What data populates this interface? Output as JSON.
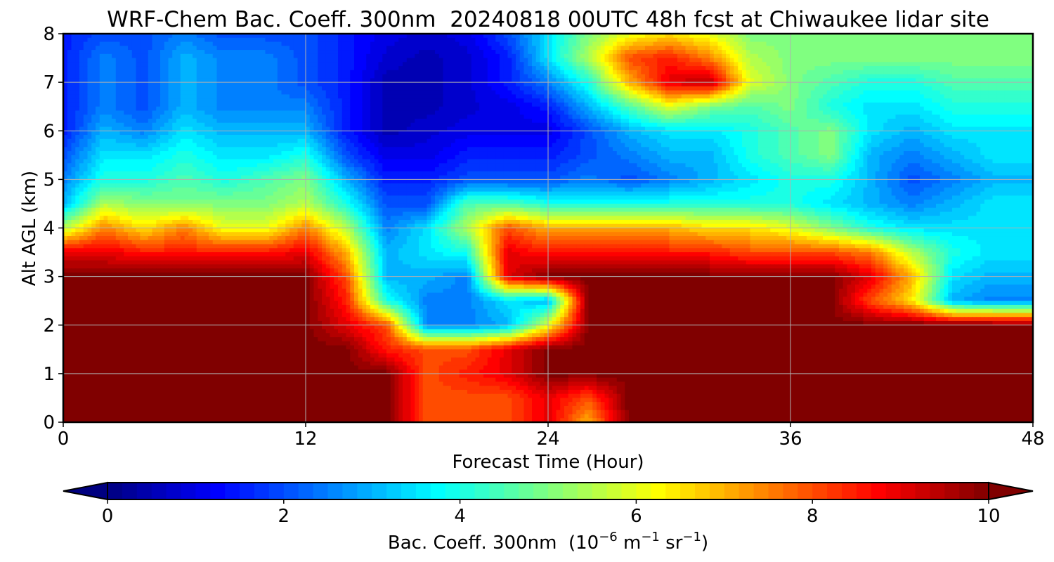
{
  "chart_data": {
    "type": "heatmap",
    "subtype": "filled-contour",
    "title": "WRF-Chem Bac. Coeff. 300nm  20240818 00UTC 48h fcst at Chiwaukee lidar site",
    "xlabel": "Forecast Time (Hour)",
    "ylabel": "Alt AGL (km)",
    "xlim": [
      0,
      48
    ],
    "ylim": [
      0,
      8
    ],
    "xticks": [
      "0",
      "12",
      "24",
      "36",
      "48"
    ],
    "yticks": [
      "0",
      "1",
      "2",
      "3",
      "4",
      "5",
      "6",
      "7",
      "8"
    ],
    "grid": true,
    "colormap": "jet",
    "colorbar": {
      "label_main": "Bac. Coeff. 300nm  (10",
      "label_exp1": "−6",
      "label_mid": " m",
      "label_exp2": "−1",
      "label_mid2": " sr",
      "label_exp3": "−1",
      "label_end": ")",
      "ticks": [
        "0",
        "2",
        "4",
        "6",
        "8",
        "10"
      ],
      "range": [
        0,
        10
      ],
      "extend": "both",
      "orientation": "horizontal"
    },
    "x": [
      0,
      2,
      4,
      6,
      8,
      10,
      12,
      14,
      16,
      18,
      20,
      22,
      24,
      26,
      28,
      30,
      32,
      34,
      36,
      38,
      40,
      42,
      44,
      46,
      48
    ],
    "y": [
      0,
      0.5,
      1,
      1.5,
      2,
      2.5,
      3,
      3.5,
      4,
      4.5,
      5,
      5.5,
      6,
      6.5,
      7,
      7.5,
      8
    ],
    "z": [
      [
        10,
        10,
        10,
        10,
        10,
        10,
        10,
        10,
        10,
        8,
        8,
        8,
        9,
        7,
        10,
        10,
        10,
        10,
        10,
        10,
        10,
        10,
        10,
        10,
        10
      ],
      [
        10,
        10,
        10,
        10,
        10,
        10,
        10,
        10,
        10,
        8,
        8,
        8,
        9,
        8,
        10,
        10,
        10,
        10,
        10,
        10,
        10,
        10,
        10,
        10,
        10
      ],
      [
        10,
        10,
        10,
        10,
        10,
        10,
        10,
        10,
        10,
        8,
        8.5,
        9,
        10,
        10,
        10,
        10,
        10,
        10,
        10,
        10,
        10,
        10,
        10,
        10,
        10
      ],
      [
        10,
        10,
        10,
        10,
        10,
        10,
        10,
        10,
        8.5,
        8,
        8,
        9,
        10,
        10,
        10,
        10,
        10,
        10,
        10,
        10,
        10,
        10,
        10,
        10,
        10
      ],
      [
        10,
        10,
        10,
        10,
        10,
        10,
        10,
        9,
        8,
        2.5,
        2.5,
        3,
        6,
        10,
        10,
        10,
        10,
        10,
        10,
        10,
        10,
        10,
        10,
        10,
        10
      ],
      [
        10,
        10,
        10,
        10,
        10,
        10,
        10,
        8.5,
        4,
        2.5,
        2.5,
        3.5,
        3,
        10,
        10,
        10,
        10,
        10,
        10,
        10,
        8,
        6.5,
        3,
        2.5,
        2.5
      ],
      [
        10,
        10,
        10,
        10,
        10,
        10,
        10,
        8,
        3,
        3,
        2.5,
        9,
        10,
        10,
        10,
        10,
        10,
        10,
        10,
        10,
        9,
        7,
        3.5,
        3,
        3
      ],
      [
        9,
        9,
        8.5,
        8.5,
        8.5,
        8.5,
        9,
        7,
        3,
        3.5,
        4,
        9,
        8.5,
        8.5,
        8.5,
        8.5,
        8.5,
        8,
        8,
        8,
        7.5,
        5.5,
        4,
        3.5,
        3.5
      ],
      [
        5.5,
        7.5,
        6.5,
        7.5,
        6,
        6,
        7.5,
        5.5,
        2.5,
        3.5,
        5.5,
        8,
        7,
        7,
        7,
        7,
        6.5,
        6.5,
        6,
        5,
        4,
        3.5,
        3.5,
        3.5,
        3.5
      ],
      [
        3,
        5.5,
        5,
        5,
        5,
        5,
        5.5,
        4,
        2,
        2,
        4.5,
        4.5,
        4,
        4,
        4,
        4,
        4,
        4,
        4,
        3.5,
        3,
        2.5,
        3,
        3.5,
        3.5
      ],
      [
        2.5,
        4,
        4,
        4.5,
        4,
        4.5,
        5,
        3,
        1.5,
        1.5,
        2,
        2,
        2,
        2.5,
        2,
        2.5,
        3,
        3.5,
        4,
        4,
        3,
        2,
        2.5,
        3,
        3
      ],
      [
        2,
        3.5,
        3.5,
        4,
        3.5,
        3.5,
        4,
        2,
        1,
        1,
        1.5,
        1.5,
        1.5,
        2,
        2.5,
        3,
        3,
        4,
        4.5,
        5,
        3,
        2.5,
        3,
        3.5,
        3.5
      ],
      [
        1.5,
        3,
        2.5,
        3.5,
        3,
        3,
        3,
        1.5,
        0.5,
        0.8,
        1,
        1,
        1,
        2,
        3,
        3.5,
        3.5,
        4,
        4.5,
        5,
        3.5,
        3,
        3.5,
        3.5,
        3.5
      ],
      [
        1.5,
        2.5,
        2,
        3,
        2.5,
        2.5,
        2.5,
        1.5,
        0.5,
        0.5,
        0.8,
        1,
        1.5,
        3,
        4.5,
        6,
        5,
        4.5,
        5,
        4,
        3.5,
        3.5,
        4,
        4,
        4
      ],
      [
        1.5,
        2.5,
        2,
        3,
        2.5,
        2.5,
        2,
        1.5,
        0.5,
        0.5,
        0.8,
        1.5,
        2.5,
        4,
        7,
        9,
        9.5,
        6,
        5,
        4.5,
        4,
        4,
        4.5,
        4.5,
        4.5
      ],
      [
        1.5,
        2.5,
        2,
        3,
        2.5,
        2.5,
        2,
        1.5,
        0.8,
        0.5,
        0.8,
        1.5,
        3.5,
        5.5,
        8,
        8.5,
        7.5,
        5.5,
        5,
        5,
        5,
        5,
        5,
        5,
        5
      ],
      [
        1.5,
        2,
        2,
        2.5,
        2,
        2,
        2,
        1.5,
        1,
        0.8,
        1,
        2,
        3.5,
        5,
        6,
        6.5,
        6,
        5,
        5,
        5,
        5,
        5,
        5,
        5,
        5
      ]
    ]
  }
}
